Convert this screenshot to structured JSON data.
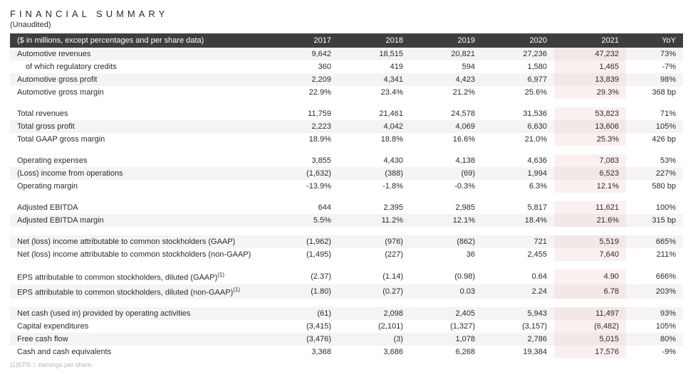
{
  "title": "FINANCIAL SUMMARY",
  "subtitle": "(Unaudited)",
  "header": {
    "label": "($ in millions, except percentages and per share data)",
    "cols": [
      "2017",
      "2018",
      "2019",
      "2020",
      "2021",
      "YoY"
    ]
  },
  "colors": {
    "header_bg": "#3e3e3e",
    "header_fg": "#ffffff",
    "stripe_bg": "#f6f3f3",
    "highlight_bg": "#fbf0f0",
    "highlight_stripe_bg": "#f4e7e7",
    "text": "#2b2b2b",
    "footnote": "#b6b6b6"
  },
  "rows": [
    {
      "type": "data",
      "stripe": true,
      "label": "Automotive revenues",
      "indent": false,
      "vals": [
        "9,642",
        "18,515",
        "20,821",
        "27,236",
        "47,232",
        "73%"
      ]
    },
    {
      "type": "data",
      "stripe": false,
      "label": "of which regulatory credits",
      "indent": true,
      "vals": [
        "360",
        "419",
        "594",
        "1,580",
        "1,465",
        "-7%"
      ]
    },
    {
      "type": "data",
      "stripe": true,
      "label": "Automotive gross profit",
      "indent": false,
      "vals": [
        "2,209",
        "4,341",
        "4,423",
        "6,977",
        "13,839",
        "98%"
      ]
    },
    {
      "type": "data",
      "stripe": false,
      "label": "Automotive gross margin",
      "indent": false,
      "vals": [
        "22.9%",
        "23.4%",
        "21.2%",
        "25.6%",
        "29.3%",
        "368 bp"
      ]
    },
    {
      "type": "spacer"
    },
    {
      "type": "data",
      "stripe": false,
      "label": "Total revenues",
      "indent": false,
      "vals": [
        "11,759",
        "21,461",
        "24,578",
        "31,536",
        "53,823",
        "71%"
      ]
    },
    {
      "type": "data",
      "stripe": true,
      "label": "Total gross profit",
      "indent": false,
      "vals": [
        "2,223",
        "4,042",
        "4,069",
        "6,630",
        "13,606",
        "105%"
      ]
    },
    {
      "type": "data",
      "stripe": false,
      "label": "Total GAAP gross margin",
      "indent": false,
      "vals": [
        "18.9%",
        "18.8%",
        "16.6%",
        "21.0%",
        "25.3%",
        "426 bp"
      ]
    },
    {
      "type": "spacer"
    },
    {
      "type": "data",
      "stripe": false,
      "label": "Operating expenses",
      "indent": false,
      "vals": [
        "3,855",
        "4,430",
        "4,138",
        "4,636",
        "7,083",
        "53%"
      ]
    },
    {
      "type": "data",
      "stripe": true,
      "label": "(Loss) income from operations",
      "indent": false,
      "vals": [
        "(1,632)",
        "(388)",
        "(69)",
        "1,994",
        "6,523",
        "227%"
      ]
    },
    {
      "type": "data",
      "stripe": false,
      "label": "Operating margin",
      "indent": false,
      "vals": [
        "-13.9%",
        "-1.8%",
        "-0.3%",
        "6.3%",
        "12.1%",
        "580 bp"
      ]
    },
    {
      "type": "spacer"
    },
    {
      "type": "data",
      "stripe": false,
      "label": "Adjusted EBITDA",
      "indent": false,
      "vals": [
        "644",
        "2,395",
        "2,985",
        "5,817",
        "11,621",
        "100%"
      ]
    },
    {
      "type": "data",
      "stripe": true,
      "label": "Adjusted EBITDA margin",
      "indent": false,
      "vals": [
        "5.5%",
        "11.2%",
        "12.1%",
        "18.4%",
        "21.6%",
        "315 bp"
      ]
    },
    {
      "type": "spacer"
    },
    {
      "type": "data",
      "stripe": true,
      "label": "Net (loss) income attributable to common stockholders (GAAP)",
      "indent": false,
      "vals": [
        "(1,962)",
        "(976)",
        "(862)",
        "721",
        "5,519",
        "665%"
      ]
    },
    {
      "type": "data",
      "stripe": false,
      "label": "Net (loss) income attributable to common stockholders (non-GAAP)",
      "indent": false,
      "vals": [
        "(1,495)",
        "(227)",
        "36",
        "2,455",
        "7,640",
        "211%"
      ]
    },
    {
      "type": "spacer"
    },
    {
      "type": "data",
      "stripe": false,
      "label": "EPS attributable to common stockholders, diluted (GAAP)",
      "sup": "(1)",
      "indent": false,
      "vals": [
        "(2.37)",
        "(1.14)",
        "(0.98)",
        "0.64",
        "4.90",
        "666%"
      ]
    },
    {
      "type": "data",
      "stripe": true,
      "label": "EPS attributable to common stockholders, diluted (non-GAAP)",
      "sup": "(1)",
      "indent": false,
      "vals": [
        "(1.80)",
        "(0.27)",
        "0.03",
        "2.24",
        "6.78",
        "203%"
      ]
    },
    {
      "type": "spacer"
    },
    {
      "type": "data",
      "stripe": true,
      "label": "Net cash (used in) provided by operating activities",
      "indent": false,
      "vals": [
        "(61)",
        "2,098",
        "2,405",
        "5,943",
        "11,497",
        "93%"
      ]
    },
    {
      "type": "data",
      "stripe": false,
      "label": "Capital expenditures",
      "indent": false,
      "vals": [
        "(3,415)",
        "(2,101)",
        "(1,327)",
        "(3,157)",
        "(6,482)",
        "105%"
      ]
    },
    {
      "type": "data",
      "stripe": true,
      "label": "Free cash flow",
      "indent": false,
      "vals": [
        "(3,476)",
        "(3)",
        "1,078",
        "2,786",
        "5,015",
        "80%"
      ]
    },
    {
      "type": "data",
      "stripe": false,
      "label": "Cash and cash equivalents",
      "indent": false,
      "vals": [
        "3,368",
        "3,686",
        "6,268",
        "19,384",
        "17,576",
        "-9%"
      ]
    }
  ],
  "highlight_col_index": 4,
  "footnote": "(1)EPS = earnings per share."
}
